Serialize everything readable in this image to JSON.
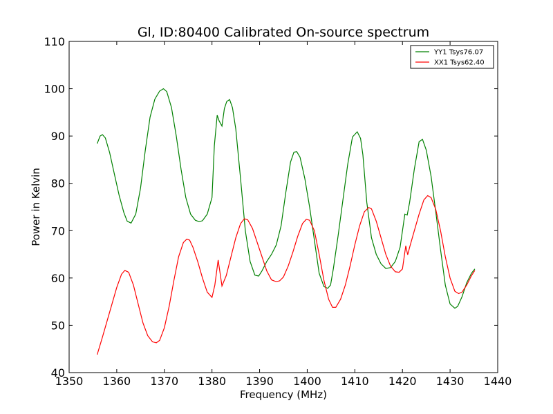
{
  "chart_data": {
    "type": "line",
    "title": "Gl, ID:80400 Calibrated On-source spectrum",
    "xlabel": "Frequency (MHz)",
    "ylabel": "Power in Kelvin",
    "xlim": [
      1350,
      1440
    ],
    "ylim": [
      40,
      110
    ],
    "xticks": [
      1350,
      1360,
      1370,
      1380,
      1390,
      1400,
      1410,
      1420,
      1430,
      1440
    ],
    "yticks": [
      40,
      50,
      60,
      70,
      80,
      90,
      100,
      110
    ],
    "grid": false,
    "legend_position": "top-right",
    "series": [
      {
        "name": "YY1 Tsys76.07",
        "color": "#008000",
        "x": [
          1355.9,
          1356.5,
          1357.0,
          1357.6,
          1358.5,
          1359.5,
          1360.5,
          1361.5,
          1362.2,
          1363.0,
          1364.0,
          1365.0,
          1366.0,
          1367.0,
          1368.0,
          1369.0,
          1369.8,
          1370.5,
          1371.5,
          1372.5,
          1373.5,
          1374.5,
          1375.5,
          1376.5,
          1377.3,
          1378.0,
          1379.0,
          1380.0,
          1380.5,
          1381.1,
          1381.5,
          1382.1,
          1382.6,
          1383.1,
          1383.7,
          1384.3,
          1385.0,
          1386.0,
          1387.0,
          1388.0,
          1389.0,
          1389.8,
          1390.5,
          1391.5,
          1392.5,
          1393.5,
          1394.5,
          1395.5,
          1396.5,
          1397.2,
          1397.8,
          1398.5,
          1399.5,
          1400.5,
          1401.5,
          1402.5,
          1403.5,
          1404.3,
          1404.9,
          1405.5,
          1406.5,
          1407.5,
          1408.5,
          1409.5,
          1410.5,
          1411.2,
          1411.7,
          1412.5,
          1413.5,
          1414.5,
          1415.5,
          1416.5,
          1417.5,
          1418.5,
          1419.5,
          1420.5,
          1421.0,
          1421.5,
          1422.5,
          1423.5,
          1424.2,
          1425.0,
          1426.0,
          1427.0,
          1428.0,
          1429.0,
          1430.0,
          1431.0,
          1431.6,
          1432.5,
          1433.5,
          1434.5,
          1435.2
        ],
        "y": [
          88.4,
          90.0,
          90.3,
          89.6,
          86.5,
          82.0,
          77.5,
          73.8,
          72.0,
          71.6,
          73.5,
          79.0,
          87.0,
          94.0,
          97.8,
          99.5,
          100.0,
          99.4,
          96.0,
          90.0,
          83.0,
          77.0,
          73.5,
          72.2,
          71.9,
          72.1,
          73.5,
          77.0,
          88.0,
          94.4,
          93.2,
          92.1,
          95.8,
          97.3,
          97.7,
          96.0,
          91.5,
          81.0,
          70.0,
          63.5,
          60.6,
          60.4,
          61.5,
          63.5,
          65.0,
          67.0,
          71.0,
          78.0,
          84.5,
          86.6,
          86.7,
          85.5,
          81.0,
          75.0,
          68.0,
          61.0,
          58.2,
          57.8,
          58.5,
          62.0,
          69.0,
          76.5,
          84.0,
          89.8,
          90.9,
          89.5,
          86.0,
          76.0,
          68.5,
          65.0,
          63.0,
          62.0,
          62.2,
          63.5,
          66.5,
          73.5,
          73.3,
          76.0,
          83.0,
          88.8,
          89.3,
          87.0,
          81.5,
          74.0,
          66.0,
          58.5,
          54.5,
          53.6,
          54.0,
          56.0,
          59.0,
          61.0,
          61.9
        ]
      },
      {
        "name": "XX1 Tsys62.40",
        "color": "#ff0000",
        "x": [
          1355.9,
          1357.0,
          1358.0,
          1359.0,
          1360.0,
          1361.0,
          1361.7,
          1362.5,
          1363.5,
          1364.5,
          1365.5,
          1366.5,
          1367.5,
          1368.3,
          1369.0,
          1370.0,
          1371.0,
          1372.0,
          1373.0,
          1374.0,
          1374.7,
          1375.3,
          1376.0,
          1377.0,
          1378.0,
          1379.0,
          1380.0,
          1380.6,
          1381.3,
          1382.1,
          1383.0,
          1384.0,
          1385.0,
          1386.0,
          1386.8,
          1387.5,
          1388.5,
          1389.5,
          1390.5,
          1391.5,
          1392.5,
          1393.5,
          1394.2,
          1395.0,
          1396.0,
          1397.0,
          1398.0,
          1399.0,
          1399.8,
          1400.5,
          1401.5,
          1402.5,
          1403.5,
          1404.5,
          1405.3,
          1406.0,
          1407.0,
          1408.0,
          1409.0,
          1410.0,
          1411.0,
          1412.0,
          1412.9,
          1413.5,
          1414.5,
          1415.5,
          1416.5,
          1417.5,
          1418.5,
          1419.3,
          1420.0,
          1420.7,
          1421.1,
          1421.5,
          1422.5,
          1423.5,
          1424.5,
          1425.3,
          1426.0,
          1427.0,
          1428.0,
          1429.0,
          1430.0,
          1431.0,
          1431.8,
          1432.5,
          1433.5,
          1434.5,
          1435.2
        ],
        "y": [
          43.8,
          47.5,
          51.0,
          54.5,
          58.0,
          60.8,
          61.6,
          61.2,
          58.5,
          54.5,
          50.5,
          47.8,
          46.5,
          46.3,
          46.8,
          49.5,
          54.0,
          59.5,
          64.5,
          67.5,
          68.2,
          68.0,
          66.5,
          63.5,
          60.0,
          57.0,
          55.9,
          58.5,
          63.8,
          58.3,
          60.5,
          64.5,
          68.5,
          71.5,
          72.5,
          72.3,
          70.5,
          67.5,
          64.5,
          61.5,
          59.6,
          59.2,
          59.4,
          60.2,
          62.5,
          65.5,
          68.8,
          71.5,
          72.4,
          72.2,
          70.0,
          65.0,
          59.5,
          55.5,
          53.8,
          53.8,
          55.5,
          58.5,
          62.5,
          67.0,
          71.0,
          74.0,
          74.9,
          74.6,
          72.0,
          68.5,
          65.0,
          62.5,
          61.3,
          61.2,
          61.9,
          66.8,
          64.9,
          66.5,
          70.0,
          73.5,
          76.5,
          77.4,
          77.0,
          74.5,
          70.0,
          64.5,
          60.0,
          57.2,
          56.7,
          57.0,
          58.5,
          60.5,
          61.6
        ]
      }
    ]
  }
}
